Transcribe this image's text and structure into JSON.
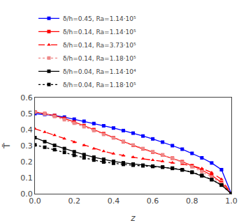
{
  "chart_data": {
    "type": "line",
    "xlabel": "z",
    "ylabel": "T̄",
    "xlim": [
      0.0,
      1.0
    ],
    "ylim": [
      0.0,
      0.6
    ],
    "xticks": [
      {
        "value": 0.0,
        "label": "0.0"
      },
      0.2,
      0.4,
      0.6,
      0.8,
      {
        "value": 1.0,
        "label": "1.0"
      }
    ],
    "yticks": [
      {
        "value": 0.0,
        "label": "0.0"
      },
      0.1,
      0.2,
      0.3,
      0.4,
      0.5,
      0.6
    ],
    "grid": false,
    "legend": "top",
    "x": [
      0.0,
      0.05,
      0.1,
      0.15,
      0.2,
      0.25,
      0.3,
      0.35,
      0.4,
      0.45,
      0.5,
      0.55,
      0.6,
      0.65,
      0.7,
      0.75,
      0.8,
      0.85,
      0.9,
      0.95,
      1.0
    ],
    "series": [
      {
        "name": "δ/h=0.45, Ra=1.14·10⁵",
        "color": "blue",
        "line_style": "solid",
        "marker": "square",
        "values": [
          0.5,
          0.495,
          0.488,
          0.478,
          0.465,
          0.452,
          0.438,
          0.424,
          0.41,
          0.394,
          0.378,
          0.36,
          0.342,
          0.322,
          0.3,
          0.278,
          0.252,
          0.224,
          0.192,
          0.15,
          0.0
        ]
      },
      {
        "name": "δ/h=0.14, Ra=1.14·10⁵",
        "color": "red",
        "line_style": "solid",
        "marker": "square",
        "values": [
          0.51,
          0.5,
          0.488,
          0.47,
          0.448,
          0.425,
          0.4,
          0.375,
          0.35,
          0.325,
          0.302,
          0.28,
          0.26,
          0.242,
          0.222,
          0.2,
          0.175,
          0.148,
          0.115,
          0.07,
          0.0
        ]
      },
      {
        "name": "δ/h=0.14, Ra=3.73·10⁵",
        "color": "red",
        "line_style": "dash",
        "marker": "triangle-up",
        "values": [
          0.405,
          0.385,
          0.365,
          0.344,
          0.322,
          0.302,
          0.282,
          0.265,
          0.25,
          0.238,
          0.228,
          0.218,
          0.21,
          0.202,
          0.194,
          0.185,
          0.174,
          0.158,
          0.132,
          0.09,
          0.0
        ]
      },
      {
        "name": "δ/h=0.14, Ra=1.18·10⁵",
        "color": "#EE8888",
        "line_style": "dot",
        "marker": "square",
        "values": [
          0.51,
          0.498,
          0.482,
          0.462,
          0.44,
          0.418,
          0.394,
          0.37,
          0.348,
          0.326,
          0.304,
          0.282,
          0.262,
          0.242,
          0.22,
          0.196,
          0.168,
          0.138,
          0.105,
          0.062,
          0.0
        ]
      },
      {
        "name": "δ/h=0.04, Ra=1.14·10⁴",
        "color": "black",
        "line_style": "solid",
        "marker": "square",
        "values": [
          0.35,
          0.325,
          0.302,
          0.282,
          0.262,
          0.244,
          0.228,
          0.215,
          0.202,
          0.193,
          0.185,
          0.178,
          0.172,
          0.166,
          0.158,
          0.148,
          0.133,
          0.112,
          0.088,
          0.054,
          0.0
        ]
      },
      {
        "name": "δ/h=0.04, Ra=1.18·10⁵",
        "color": "black",
        "line_style": "dot",
        "marker": "square",
        "values": [
          0.305,
          0.29,
          0.275,
          0.258,
          0.24,
          0.224,
          0.21,
          0.198,
          0.19,
          0.183,
          0.178,
          0.174,
          0.17,
          0.166,
          0.16,
          0.15,
          0.135,
          0.114,
          0.088,
          0.054,
          0.0
        ]
      }
    ]
  }
}
